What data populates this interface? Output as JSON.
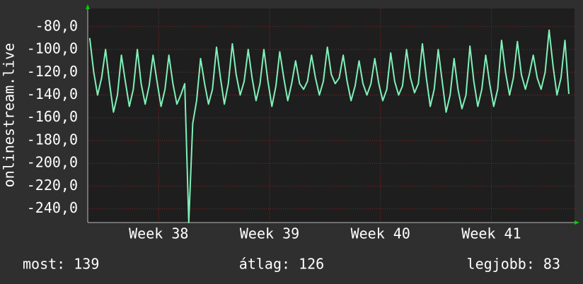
{
  "chart_data": {
    "type": "line",
    "ylabel": "onlinestream.live",
    "annotations": [
      "most: 139",
      "átlag: 126",
      "legjobb: 83"
    ],
    "color": "#80f0b8",
    "grid": true,
    "xlim": [
      37.36,
      41.75
    ],
    "ylim": [
      -252,
      -64
    ],
    "xticks": [
      {
        "value": 38,
        "label": "Week 38"
      },
      {
        "value": 39,
        "label": "Week 39"
      },
      {
        "value": 40,
        "label": "Week 40"
      },
      {
        "value": 41,
        "label": "Week 41"
      }
    ],
    "yticks": [
      {
        "value": -80,
        "label": "-80,0"
      },
      {
        "value": -100,
        "label": "-100,0"
      },
      {
        "value": -120,
        "label": "-120,0"
      },
      {
        "value": -140,
        "label": "-140,0"
      },
      {
        "value": -160,
        "label": "-160,0"
      },
      {
        "value": -180,
        "label": "-180,0"
      },
      {
        "value": -200,
        "label": "-200,0"
      },
      {
        "value": -220,
        "label": "-220,0"
      },
      {
        "value": -240,
        "label": "-240,0"
      }
    ],
    "x": [
      37.378,
      37.414,
      37.449,
      37.485,
      37.521,
      37.557,
      37.592,
      37.628,
      37.664,
      37.699,
      37.735,
      37.771,
      37.807,
      37.842,
      37.878,
      37.914,
      37.949,
      37.985,
      38.021,
      38.057,
      38.092,
      38.128,
      38.164,
      38.199,
      38.235,
      38.271,
      38.307,
      38.342,
      38.378,
      38.414,
      38.449,
      38.485,
      38.521,
      38.557,
      38.592,
      38.628,
      38.664,
      38.699,
      38.735,
      38.771,
      38.807,
      38.842,
      38.878,
      38.914,
      38.949,
      38.985,
      39.021,
      39.057,
      39.092,
      39.128,
      39.164,
      39.199,
      39.235,
      39.271,
      39.307,
      39.342,
      39.378,
      39.414,
      39.449,
      39.485,
      39.521,
      39.557,
      39.592,
      39.628,
      39.664,
      39.699,
      39.735,
      39.771,
      39.807,
      39.842,
      39.878,
      39.914,
      39.949,
      39.985,
      40.021,
      40.057,
      40.092,
      40.128,
      40.164,
      40.199,
      40.235,
      40.271,
      40.307,
      40.342,
      40.378,
      40.414,
      40.449,
      40.485,
      40.521,
      40.557,
      40.592,
      40.628,
      40.664,
      40.699,
      40.735,
      40.771,
      40.807,
      40.842,
      40.878,
      40.914,
      40.949,
      40.985,
      41.021,
      41.057,
      41.092,
      41.128,
      41.164,
      41.199,
      41.235,
      41.271,
      41.307,
      41.342,
      41.378,
      41.414,
      41.449,
      41.485,
      41.521,
      41.557,
      41.592,
      41.628,
      41.664,
      41.699
    ],
    "values": [
      -90,
      -120,
      -140,
      -125,
      -100,
      -130,
      -155,
      -140,
      -105,
      -128,
      -150,
      -135,
      -100,
      -130,
      -148,
      -132,
      -105,
      -128,
      -150,
      -135,
      -105,
      -130,
      -148,
      -140,
      -130,
      -252,
      -165,
      -145,
      -108,
      -130,
      -148,
      -135,
      -98,
      -125,
      -148,
      -130,
      -95,
      -122,
      -140,
      -128,
      -100,
      -125,
      -145,
      -130,
      -100,
      -128,
      -150,
      -132,
      -102,
      -125,
      -145,
      -130,
      -110,
      -130,
      -135,
      -128,
      -105,
      -125,
      -140,
      -128,
      -98,
      -122,
      -130,
      -125,
      -105,
      -128,
      -145,
      -132,
      -110,
      -130,
      -140,
      -130,
      -108,
      -130,
      -145,
      -135,
      -103,
      -128,
      -140,
      -132,
      -100,
      -125,
      -138,
      -130,
      -95,
      -125,
      -150,
      -135,
      -100,
      -128,
      -155,
      -140,
      -108,
      -135,
      -152,
      -140,
      -97,
      -128,
      -150,
      -135,
      -105,
      -130,
      -150,
      -135,
      -92,
      -120,
      -140,
      -125,
      -93,
      -122,
      -135,
      -122,
      -105,
      -125,
      -135,
      -120,
      -83,
      -115,
      -140,
      -125,
      -92,
      -139
    ]
  }
}
